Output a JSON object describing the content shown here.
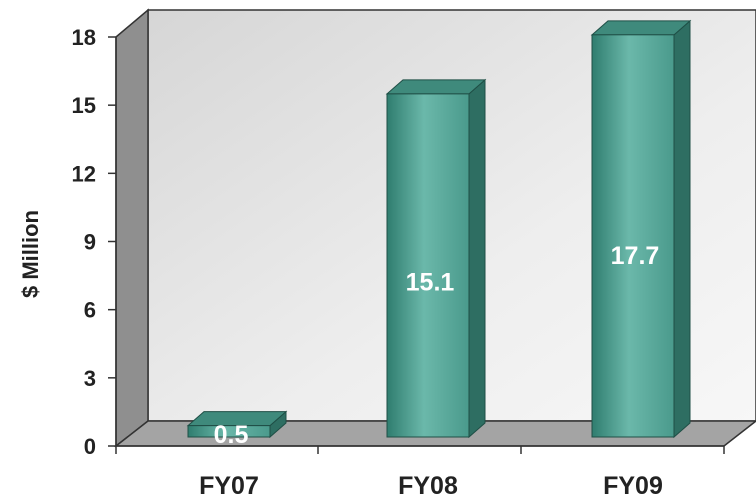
{
  "chart_data": {
    "type": "bar",
    "categories": [
      "FY07",
      "FY08",
      "FY09"
    ],
    "values": [
      0.5,
      15.1,
      17.7
    ],
    "data_labels": [
      "0.5",
      "15.1",
      "17.7"
    ],
    "ylabel": "$ Million",
    "xlabel": "",
    "ylim": [
      0,
      18
    ],
    "yticks": [
      "0",
      "3",
      "6",
      "9",
      "12",
      "15",
      "18"
    ],
    "style": "3d",
    "grid": false,
    "colors": {
      "bar_front": "#5aab9c",
      "bar_side": "#2e6e62",
      "bar_top": "#3f8a7c",
      "back_wall": "#e6e6e6",
      "side_wall": "#8f8f8f",
      "floor": "#a4a4a4"
    }
  }
}
